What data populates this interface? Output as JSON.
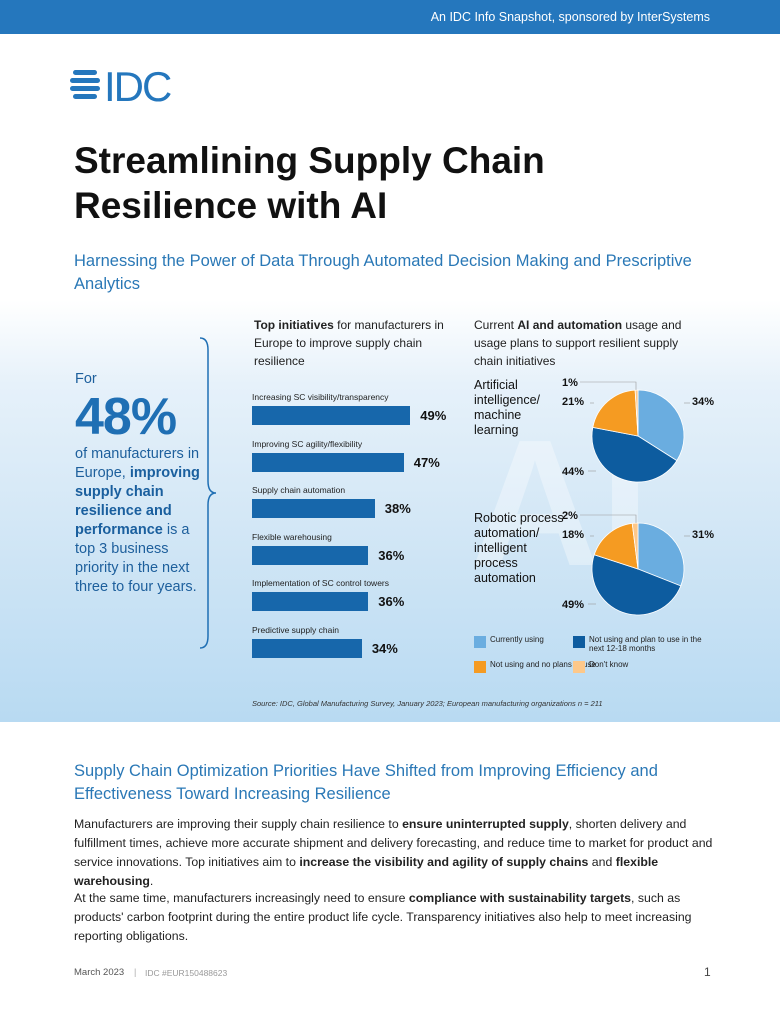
{
  "header": {
    "text": "An IDC Info Snapshot, sponsored by InterSystems"
  },
  "logo": {
    "text": "IDC",
    "color": "#2577bd"
  },
  "title": "Streamlining Supply Chain Resilience with AI",
  "subtitle": "Harnessing the Power of Data Through Automated Decision Making and Prescriptive Analytics",
  "stat": {
    "lead": "For",
    "value": "48%",
    "pre": "of manufacturers in Europe,",
    "bold": "improving supply chain resilience and performance",
    "post": "is a top 3 business priority in the next three to four years."
  },
  "chart_data": [
    {
      "type": "bar",
      "title_bold": "Top initiatives",
      "title_rest": " for manufacturers in Europe to improve supply chain resilience",
      "categories": [
        "Increasing SC visibility/transparency",
        "Improving SC agility/flexibility",
        "Supply chain automation",
        "Flexible warehousing",
        "Implementation of SC control towers",
        "Predictive supply chain"
      ],
      "values": [
        49,
        47,
        38,
        36,
        36,
        34
      ],
      "value_labels": [
        "49%",
        "47%",
        "38%",
        "36%",
        "36%",
        "34%"
      ],
      "color": "#1767ab"
    },
    {
      "type": "pie",
      "title_pre": "Current ",
      "title_bold": "AI and automation",
      "title_post": " usage and usage plans to support resilient supply chain initiatives",
      "legend": [
        {
          "label": "Currently using",
          "color": "#6aade0"
        },
        {
          "label": "Not using and plan to use in the next 12-18 months",
          "color": "#0d5c9f"
        },
        {
          "label": "Not using and no plans to use",
          "color": "#f59b22"
        },
        {
          "label": "Don't know",
          "color": "#fdc88a"
        }
      ],
      "pies": [
        {
          "name": "Artificial intelligence/ machine learning",
          "values": [
            34,
            44,
            21,
            1
          ],
          "labels": [
            "34%",
            "44%",
            "21%",
            "1%"
          ]
        },
        {
          "name": "Robotic process automation/ intelligent process automation",
          "values": [
            31,
            49,
            18,
            2
          ],
          "labels": [
            "31%",
            "49%",
            "18%",
            "2%"
          ]
        }
      ]
    }
  ],
  "source": "Source: IDC, Global Manufacturing Survey, January 2023; European manufacturing organizations n = 211",
  "section": {
    "heading": "Supply Chain Optimization Priorities Have Shifted from Improving Efficiency and Effectiveness Toward Increasing Resilience",
    "p1": [
      "Manufacturers are improving their supply chain resilience to ",
      "ensure uninterrupted supply",
      ", shorten delivery and fulfillment times, achieve more accurate shipment and delivery forecasting, and reduce time to market for product and service innovations. Top initiatives aim to ",
      "increase the visibility and agility of supply chains",
      " and ",
      "flexible warehousing",
      "."
    ],
    "p2": [
      "At the same time, manufacturers increasingly need to ensure ",
      "compliance with sustainability targets",
      ", such as products' carbon footprint during the entire product life cycle. Transparency initiatives also help to meet increasing reporting obligations."
    ]
  },
  "footer": {
    "date": "March 2023",
    "sep": "|",
    "id": "IDC #EUR150488623",
    "page": "1"
  }
}
